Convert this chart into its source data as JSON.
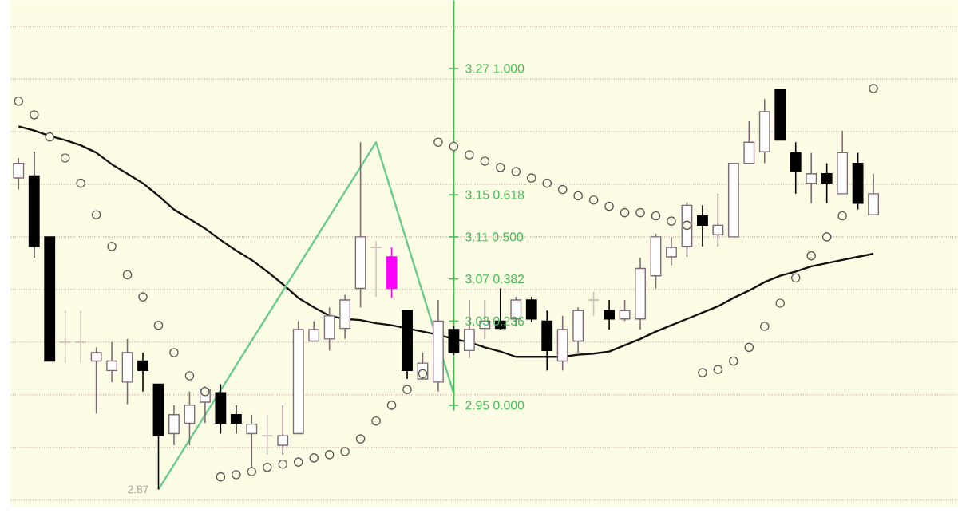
{
  "chart_data": {
    "type": "candlestick",
    "categories": [
      null,
      null,
      null,
      null,
      null,
      null,
      null,
      null,
      null,
      null,
      null,
      null,
      null,
      null,
      null,
      null,
      null,
      null,
      null,
      null,
      null,
      null,
      null,
      null,
      null,
      null,
      null,
      null,
      null,
      null,
      null,
      null,
      null,
      null,
      null,
      null,
      null,
      null,
      null,
      null,
      null,
      null,
      null,
      null,
      null,
      null,
      null,
      null,
      null,
      null,
      null,
      null,
      null,
      null,
      null,
      null
    ],
    "ohlc": [
      [
        3.166,
        3.185,
        3.155,
        3.18
      ],
      [
        3.168,
        3.191,
        3.09,
        3.101
      ],
      [
        3.11,
        3.11,
        2.992,
        2.992
      ],
      [
        3.01,
        3.04,
        2.99,
        3.01
      ],
      [
        3.01,
        3.04,
        2.99,
        3.01
      ],
      [
        2.992,
        3.005,
        2.942,
        3.0
      ],
      [
        2.983,
        3.01,
        2.972,
        2.992
      ],
      [
        2.972,
        3.013,
        2.951,
        3.0
      ],
      [
        2.992,
        3.0,
        2.963,
        2.983
      ],
      [
        2.97,
        2.97,
        2.87,
        2.921
      ],
      [
        2.923,
        2.95,
        2.912,
        2.941
      ],
      [
        2.933,
        2.963,
        2.912,
        2.95
      ],
      [
        2.953,
        2.968,
        2.933,
        2.965
      ],
      [
        2.962,
        2.97,
        2.923,
        2.933
      ],
      [
        2.941,
        2.95,
        2.923,
        2.933
      ],
      [
        2.923,
        2.941,
        2.89,
        2.932
      ],
      [
        2.921,
        2.941,
        2.903,
        2.921
      ],
      [
        2.912,
        2.95,
        2.903,
        2.921
      ],
      [
        2.923,
        3.03,
        2.923,
        3.022
      ],
      [
        3.011,
        3.03,
        3.011,
        3.022
      ],
      [
        3.013,
        3.043,
        3.002,
        3.035
      ],
      [
        3.023,
        3.055,
        3.013,
        3.05
      ],
      [
        3.061,
        3.2,
        3.043,
        3.11
      ],
      [
        3.1,
        3.106,
        3.053,
        3.1
      ],
      [
        3.091,
        3.1,
        3.052,
        3.061
      ],
      [
        3.04,
        3.04,
        2.975,
        2.983
      ],
      [
        2.975,
        3.0,
        2.975,
        2.99
      ],
      [
        2.972,
        3.05,
        2.963,
        3.03
      ],
      [
        3.022,
        3.025,
        2.998,
        3.0
      ],
      [
        3.002,
        3.05,
        2.995,
        3.022
      ],
      [
        3.023,
        3.05,
        3.013,
        3.03
      ],
      [
        3.03,
        3.061,
        3.022,
        3.023
      ],
      [
        3.032,
        3.053,
        3.025,
        3.05
      ],
      [
        3.05,
        3.053,
        3.029,
        3.032
      ],
      [
        3.03,
        3.04,
        2.983,
        3.002
      ],
      [
        2.992,
        3.035,
        2.983,
        3.022
      ],
      [
        3.011,
        3.043,
        3.0,
        3.04
      ],
      [
        3.05,
        3.058,
        3.035,
        3.05
      ],
      [
        3.04,
        3.05,
        3.022,
        3.032
      ],
      [
        3.032,
        3.05,
        3.03,
        3.04
      ],
      [
        3.032,
        3.09,
        3.022,
        3.08
      ],
      [
        3.073,
        3.113,
        3.061,
        3.11
      ],
      [
        3.091,
        3.11,
        3.083,
        3.1
      ],
      [
        3.101,
        3.143,
        3.091,
        3.14
      ],
      [
        3.13,
        3.14,
        3.101,
        3.121
      ],
      [
        3.112,
        3.151,
        3.101,
        3.121
      ],
      [
        3.11,
        3.18,
        3.11,
        3.18
      ],
      [
        3.18,
        3.22,
        3.18,
        3.2
      ],
      [
        3.191,
        3.241,
        3.18,
        3.229
      ],
      [
        3.25,
        3.25,
        3.202,
        3.202
      ],
      [
        3.19,
        3.2,
        3.151,
        3.172
      ],
      [
        3.161,
        3.19,
        3.142,
        3.17
      ],
      [
        3.17,
        3.18,
        3.142,
        3.161
      ],
      [
        3.151,
        3.211,
        3.151,
        3.19
      ],
      [
        3.18,
        3.19,
        3.136,
        3.142
      ],
      [
        3.131,
        3.17,
        3.131,
        3.151
      ]
    ],
    "colors": [
      "#806878",
      "#000000",
      "#000000",
      "#d0c0c0",
      "#d0c0c0",
      "#806878",
      "#806878",
      "#806878",
      "#000000",
      "#000000",
      "#806878",
      "#806878",
      "#806878",
      "#000000",
      "#000000",
      "#806878",
      "#d0c0c0",
      "#806878",
      "#806878",
      "#806878",
      "#806878",
      "#806878",
      "#806878",
      "#d0c0c0",
      "#ff00ff",
      "#000000",
      "#806878",
      "#806878",
      "#000000",
      "#806878",
      "#806878",
      "#000000",
      "#806878",
      "#000000",
      "#000000",
      "#806878",
      "#806878",
      "#d0c0c0",
      "#000000",
      "#806878",
      "#806878",
      "#806878",
      "#806878",
      "#806878",
      "#000000",
      "#806878",
      "#806878",
      "#806878",
      "#806878",
      "#000000",
      "#000000",
      "#806878",
      "#000000",
      "#806878",
      "#000000",
      "#806878"
    ],
    "series": [
      {
        "type": "line",
        "color": "#111111",
        "values": [
          3.215,
          3.211,
          3.206,
          3.202,
          3.197,
          3.19,
          3.179,
          3.17,
          3.161,
          3.149,
          3.136,
          3.127,
          3.118,
          3.107,
          3.097,
          3.088,
          3.077,
          3.065,
          3.052,
          3.043,
          3.035,
          3.032,
          3.031,
          3.028,
          3.026,
          3.023,
          3.02,
          3.017,
          3.013,
          3.01,
          3.005,
          3.001,
          2.996,
          2.996,
          2.996,
          2.996,
          2.998,
          2.999,
          3.001,
          3.007,
          3.013,
          3.02,
          3.026,
          3.032,
          3.038,
          3.044,
          3.052,
          3.059,
          3.067,
          3.073,
          3.077,
          3.082,
          3.085,
          3.088,
          3.091,
          3.094
        ]
      },
      {
        "type": "scatter",
        "color": "#555555",
        "marker": "circle",
        "values": [
          3.239,
          3.226,
          3.205,
          3.185,
          3.161,
          3.131,
          3.101,
          3.074,
          3.053,
          3.026,
          3.0,
          2.978,
          2.963,
          2.882,
          2.884,
          2.887,
          2.891,
          2.894,
          2.896,
          2.9,
          2.903,
          2.906,
          2.918,
          2.935,
          2.95,
          2.965,
          2.98,
          3.2,
          3.196,
          3.188,
          3.182,
          3.176,
          3.172,
          3.166,
          3.161,
          3.155,
          3.149,
          3.145,
          3.139,
          3.133,
          3.133,
          3.13,
          3.125,
          3.121,
          2.981,
          2.984,
          2.992,
          3.005,
          3.025,
          3.047,
          3.071,
          3.092,
          3.11,
          3.13,
          null,
          3.251
        ]
      },
      {
        "type": "line",
        "color": "#66cc88",
        "values": [
          null,
          null,
          null,
          null,
          null,
          null,
          null,
          null,
          null,
          2.87,
          null,
          null,
          null,
          null,
          null,
          null,
          null,
          null,
          null,
          null,
          null,
          null,
          null,
          3.2,
          null,
          null,
          null,
          null,
          2.961,
          null,
          null,
          null,
          null,
          null,
          null,
          null,
          null,
          null,
          null,
          null,
          null,
          null,
          null,
          null,
          null,
          null,
          null,
          null,
          null,
          null,
          null,
          null,
          null,
          null,
          null,
          null
        ],
        "value_labels": [
          null,
          null,
          null,
          null,
          null,
          null,
          null,
          null,
          null,
          "2.87",
          null,
          null,
          null,
          null,
          null,
          null,
          null,
          null,
          null,
          null,
          null,
          null,
          null,
          null,
          null,
          null,
          null,
          null,
          null,
          null,
          null,
          null,
          null,
          null,
          null,
          null,
          null,
          null,
          null,
          null,
          null,
          null,
          null,
          null,
          null,
          null,
          null,
          null,
          null,
          null,
          null,
          null,
          null,
          null,
          null,
          null
        ]
      }
    ],
    "ref_lines": [
      {
        "axis": "y",
        "value": 3.27,
        "label": "3.27 1.000",
        "color": "#44bb55"
      },
      {
        "axis": "y",
        "value": 3.15,
        "label": "3.15 0.618",
        "color": "#44bb55"
      },
      {
        "axis": "y",
        "value": 3.11,
        "label": "3.11 0.500",
        "color": "#44bb55"
      },
      {
        "axis": "y",
        "value": 3.07,
        "label": "3.07 0.382",
        "color": "#44bb55"
      },
      {
        "axis": "y",
        "value": 3.03,
        "label": "3.03 0.236",
        "color": "#44bb55"
      },
      {
        "axis": "y",
        "value": 2.95,
        "label": "2.95 0.000",
        "color": "#44bb55"
      }
    ],
    "ylim": [
      2.854,
      3.335
    ],
    "yticks": [
      {
        "value": 3.31,
        "label": null
      },
      {
        "value": 3.26,
        "label": null
      },
      {
        "value": 3.21,
        "label": null
      },
      {
        "value": 3.16,
        "label": null
      },
      {
        "value": 3.11,
        "label": null
      },
      {
        "value": 3.06,
        "label": null
      },
      {
        "value": 3.01,
        "label": null
      },
      {
        "value": 2.96,
        "label": null
      },
      {
        "value": 2.91,
        "label": null
      },
      {
        "value": 2.86,
        "label": null
      }
    ],
    "grid": "y",
    "tick_labels": false
  }
}
